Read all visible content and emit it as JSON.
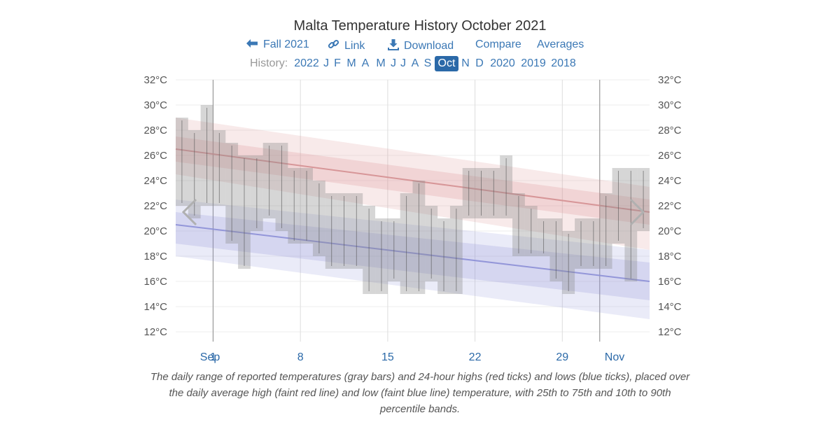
{
  "title": "Malta Temperature History October 2021",
  "actions": {
    "fall": "Fall 2021",
    "link": "Link",
    "download": "Download",
    "compare": "Compare",
    "averages": "Averages"
  },
  "history": {
    "label": "History:",
    "links": [
      "2022",
      "J",
      "F",
      "M",
      "A",
      "M",
      "J",
      "J",
      "A",
      "S",
      "Oct",
      "N",
      "D",
      "2020",
      "2019",
      "2018"
    ],
    "selected": "Oct"
  },
  "caption": "The daily range of reported temperatures (gray bars) and 24-hour highs (red ticks) and lows (blue ticks), placed over the daily average high (faint red line) and low (faint blue line) temperature, with 25th to 75th and 10th to 90th percentile bands.",
  "icons": {
    "back": "arrow-left-icon",
    "link": "link-icon",
    "download": "download-icon",
    "prev": "chevron-left-icon",
    "next": "chevron-right-icon"
  },
  "colors": {
    "link": "#3b78b5",
    "selected_bg": "#2b69a8",
    "high": "#d9898b",
    "low": "#8c8fd6",
    "bar": "#8a8a8a"
  },
  "chart_data": {
    "type": "bar",
    "y_unit": "°C",
    "ylim": [
      11,
      32
    ],
    "y_ticks": [
      12,
      14,
      16,
      18,
      20,
      22,
      24,
      26,
      28,
      30,
      32
    ],
    "y_tick_labels": [
      "12°C",
      "14°C",
      "16°C",
      "18°C",
      "20°C",
      "22°C",
      "24°C",
      "26°C",
      "28°C",
      "30°C",
      "32°C"
    ],
    "x_range": [
      "2021-09-28",
      "2021-11-04"
    ],
    "x_ticks": [
      {
        "label": "Sep",
        "date": "2021-09-29"
      },
      {
        "label": "1",
        "date": "2021-10-01"
      },
      {
        "label": "8",
        "date": "2021-10-08"
      },
      {
        "label": "15",
        "date": "2021-10-15"
      },
      {
        "label": "22",
        "date": "2021-10-22"
      },
      {
        "label": "29",
        "date": "2021-10-29"
      },
      {
        "label": "Nov",
        "date": "2021-11-02"
      }
    ],
    "month_boundaries": [
      "2021-10-01",
      "2021-11-01"
    ],
    "avg_high": {
      "start": 26.5,
      "end": 21.5
    },
    "avg_low": {
      "start": 20.5,
      "end": 16.0
    },
    "high_band_25_75": {
      "start": [
        25.5,
        27.5
      ],
      "end": [
        20.5,
        22.5
      ]
    },
    "high_band_10_90": {
      "start": [
        24.5,
        29.0
      ],
      "end": [
        18.5,
        23.5
      ]
    },
    "low_band_25_75": {
      "start": [
        19.0,
        21.5
      ],
      "end": [
        14.5,
        17.5
      ]
    },
    "low_band_10_90": {
      "start": [
        18.0,
        22.5
      ],
      "end": [
        13.0,
        18.5
      ]
    },
    "daily_ranges": [
      {
        "date": "2021-09-28",
        "low": 22,
        "high": 29
      },
      {
        "date": "2021-09-29",
        "low": 21,
        "high": 28
      },
      {
        "date": "2021-09-30",
        "low": 22,
        "high": 30
      },
      {
        "date": "2021-10-01",
        "low": 22,
        "high": 28
      },
      {
        "date": "2021-10-02",
        "low": 19,
        "high": 27
      },
      {
        "date": "2021-10-03",
        "low": 17,
        "high": 26
      },
      {
        "date": "2021-10-04",
        "low": 20,
        "high": 26
      },
      {
        "date": "2021-10-05",
        "low": 21,
        "high": 27
      },
      {
        "date": "2021-10-06",
        "low": 20,
        "high": 27
      },
      {
        "date": "2021-10-07",
        "low": 19,
        "high": 25
      },
      {
        "date": "2021-10-08",
        "low": 19,
        "high": 25
      },
      {
        "date": "2021-10-09",
        "low": 18,
        "high": 24
      },
      {
        "date": "2021-10-10",
        "low": 17,
        "high": 23
      },
      {
        "date": "2021-10-11",
        "low": 17,
        "high": 23
      },
      {
        "date": "2021-10-12",
        "low": 17,
        "high": 23
      },
      {
        "date": "2021-10-13",
        "low": 15,
        "high": 22
      },
      {
        "date": "2021-10-14",
        "low": 15,
        "high": 21
      },
      {
        "date": "2021-10-15",
        "low": 16,
        "high": 21
      },
      {
        "date": "2021-10-16",
        "low": 15,
        "high": 23
      },
      {
        "date": "2021-10-17",
        "low": 15,
        "high": 24
      },
      {
        "date": "2021-10-18",
        "low": 16,
        "high": 22
      },
      {
        "date": "2021-10-19",
        "low": 15,
        "high": 21
      },
      {
        "date": "2021-10-20",
        "low": 15,
        "high": 22
      },
      {
        "date": "2021-10-21",
        "low": 21,
        "high": 25
      },
      {
        "date": "2021-10-22",
        "low": 21,
        "high": 25
      },
      {
        "date": "2021-10-23",
        "low": 21,
        "high": 25
      },
      {
        "date": "2021-10-24",
        "low": 21,
        "high": 26
      },
      {
        "date": "2021-10-25",
        "low": 18,
        "high": 23
      },
      {
        "date": "2021-10-26",
        "low": 18,
        "high": 22
      },
      {
        "date": "2021-10-27",
        "low": 18,
        "high": 21
      },
      {
        "date": "2021-10-28",
        "low": 16,
        "high": 21
      },
      {
        "date": "2021-10-29",
        "low": 15,
        "high": 20
      },
      {
        "date": "2021-10-30",
        "low": 17,
        "high": 21
      },
      {
        "date": "2021-10-31",
        "low": 17,
        "high": 21
      },
      {
        "date": "2021-11-01",
        "low": 17,
        "high": 23
      },
      {
        "date": "2021-11-02",
        "low": 19,
        "high": 25
      },
      {
        "date": "2021-11-03",
        "low": 16,
        "high": 25
      },
      {
        "date": "2021-11-04",
        "low": 20,
        "high": 25
      }
    ]
  }
}
